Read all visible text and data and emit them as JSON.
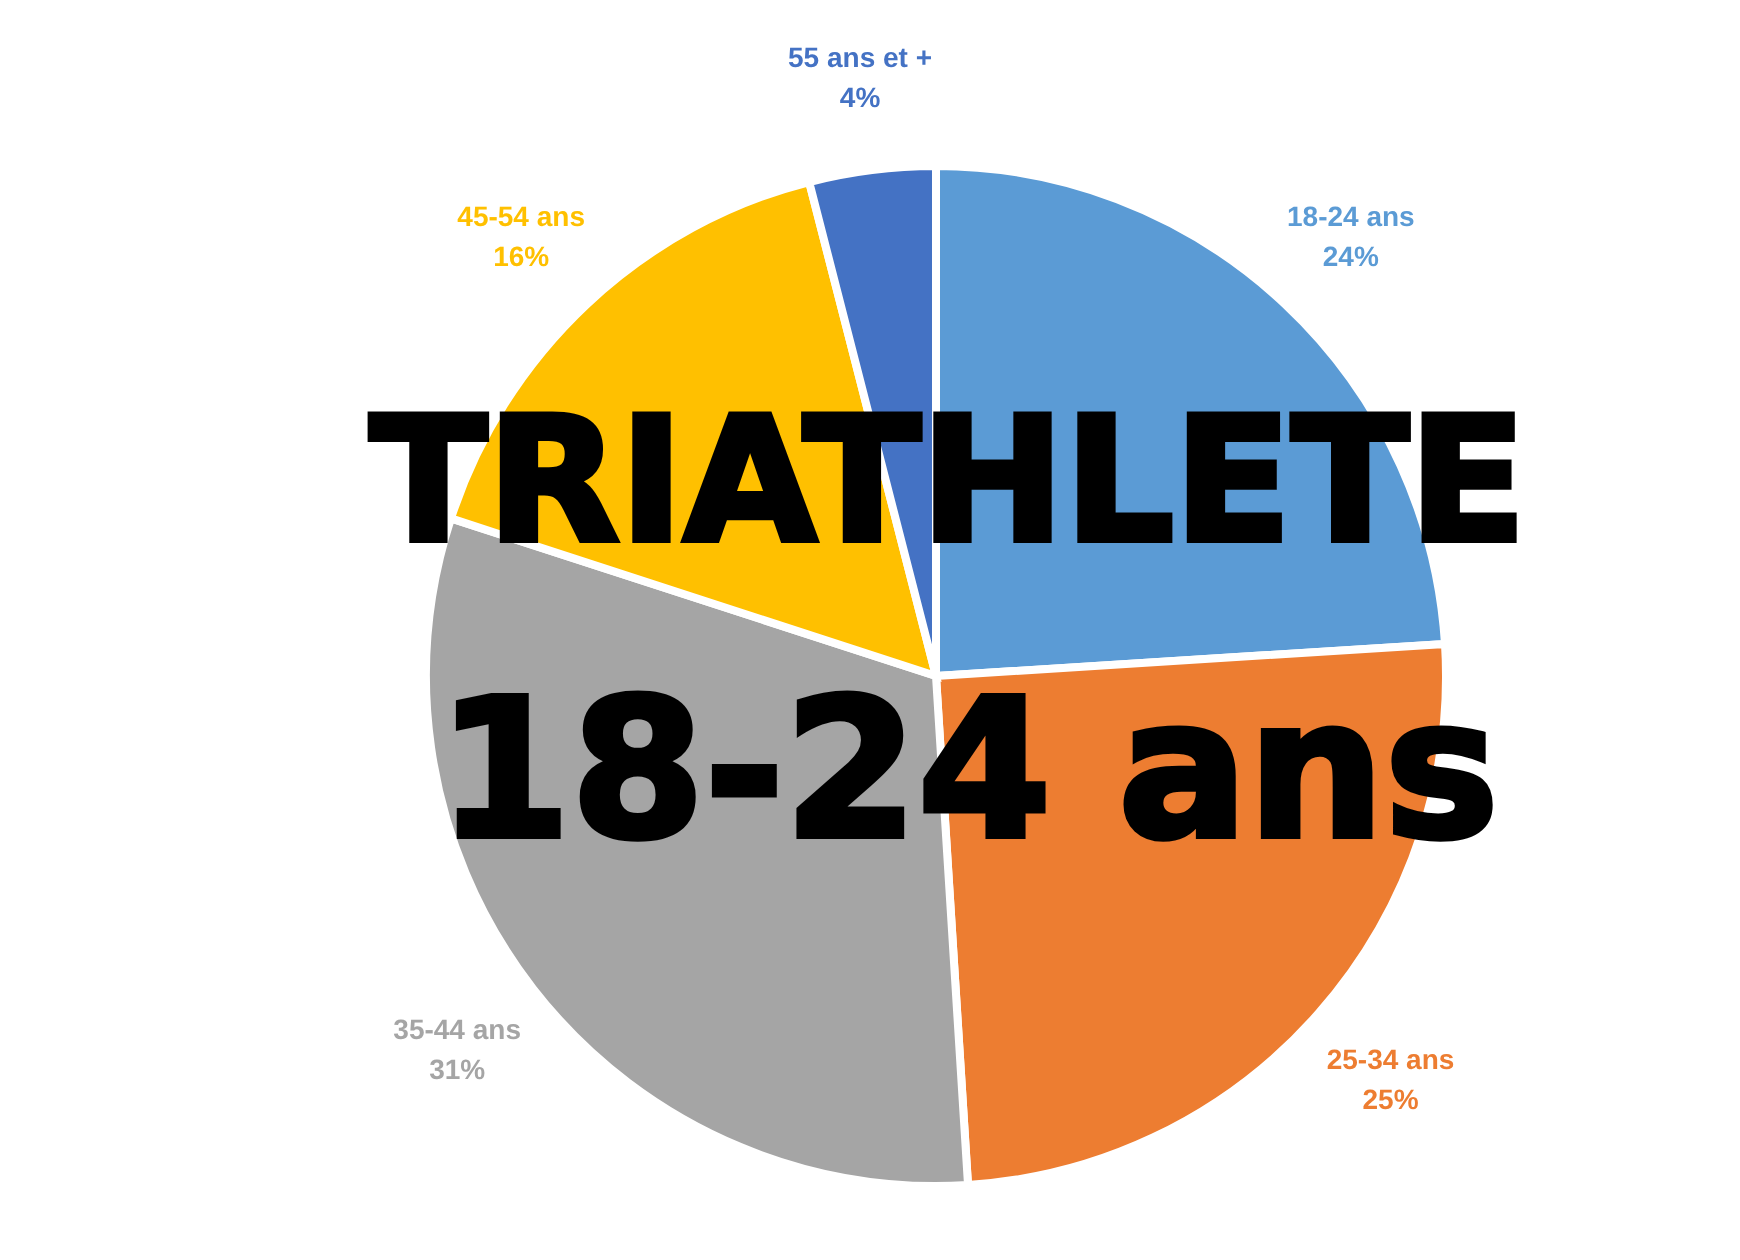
{
  "chart_data": {
    "type": "pie",
    "title": "TRIATHLETE",
    "subtitle": "18-24 ans",
    "categories": [
      "18-24 ans",
      "25-34 ans",
      "35-44 ans",
      "45-54 ans",
      "55 ans et +"
    ],
    "values": [
      24,
      25,
      31,
      16,
      4
    ],
    "value_labels": [
      "24%",
      "25%",
      "31%",
      "16%",
      "4%"
    ],
    "colors": [
      "#5b9bd5",
      "#ed7d31",
      "#a5a5a5",
      "#ffc000",
      "#4472c4"
    ],
    "legend": false
  }
}
